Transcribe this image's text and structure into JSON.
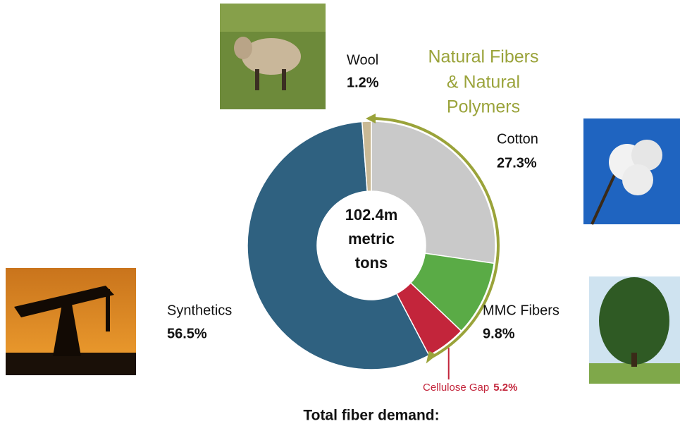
{
  "chart_data": {
    "type": "donut",
    "categories": [
      "Cotton",
      "MMC Fibers",
      "Cellulose Gap",
      "Synthetics",
      "Wool"
    ],
    "values": [
      27.3,
      9.8,
      5.2,
      56.5,
      1.2
    ],
    "value_labels": [
      "27.3%",
      "9.8%",
      "5.2%",
      "56.5%",
      "1.2%"
    ],
    "colors": [
      "#c9c9c9",
      "#5aab46",
      "#c3253b",
      "#2f6180",
      "#c9b995"
    ],
    "center_text": [
      "102.4m",
      "metric",
      "tons"
    ],
    "annotation": [
      "Natural Fibers",
      "& Natural",
      "Polymers"
    ],
    "footer": "Total fiber demand:"
  }
}
